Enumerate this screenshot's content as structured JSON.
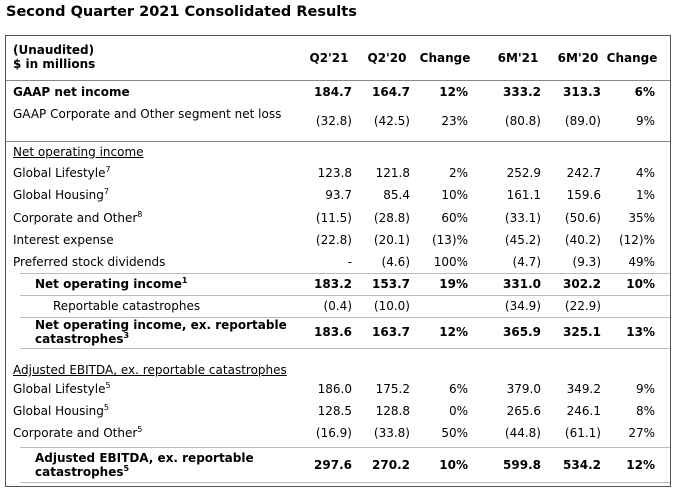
{
  "title": "Second Quarter 2021 Consolidated Results",
  "table": {
    "header": {
      "label": [
        "(Unaudited)",
        "$ in millions"
      ],
      "columns": [
        "Q2'21",
        "Q2'20",
        "Change",
        "6M'21",
        "6M'20",
        "Change"
      ]
    },
    "rows": [
      {
        "label": "GAAP net income",
        "sup": null,
        "values": [
          "184.7",
          "164.7",
          "12%",
          "333.2",
          "313.3",
          "6%"
        ]
      },
      {
        "label": "GAAP Corporate and Other segment net loss",
        "sup": null,
        "values": [
          "(32.8)",
          "(42.5)",
          "23%",
          "(80.8)",
          "(89.0)",
          "9%"
        ]
      },
      {
        "label": "Net operating income",
        "sup": null,
        "values": null
      },
      {
        "label": "Global Lifestyle",
        "sup": "7",
        "values": [
          "123.8",
          "121.8",
          "2%",
          "252.9",
          "242.7",
          "4%"
        ]
      },
      {
        "label": "Global Housing",
        "sup": "7",
        "values": [
          "93.7",
          "85.4",
          "10%",
          "161.1",
          "159.6",
          "1%"
        ]
      },
      {
        "label": "Corporate and Other",
        "sup": "8",
        "values": [
          "(11.5)",
          "(28.8)",
          "60%",
          "(33.1)",
          "(50.6)",
          "35%"
        ]
      },
      {
        "label": "Interest expense",
        "sup": null,
        "values": [
          "(22.8)",
          "(20.1)",
          "(13)%",
          "(45.2)",
          "(40.2)",
          "(12)%"
        ]
      },
      {
        "label": "Preferred stock dividends",
        "sup": null,
        "values": [
          "-",
          "(4.6)",
          "100%",
          "(4.7)",
          "(9.3)",
          "49%"
        ]
      },
      {
        "label": "Net operating income",
        "sup": "1",
        "values": [
          "183.2",
          "153.7",
          "19%",
          "331.0",
          "302.2",
          "10%"
        ]
      },
      {
        "label": "Reportable catastrophes",
        "sup": null,
        "values": [
          "(0.4)",
          "(10.0)",
          null,
          "(34.9)",
          "(22.9)",
          null
        ]
      },
      {
        "label": "Net operating income, ex. reportable catastrophes",
        "sup": "3",
        "values": [
          "183.6",
          "163.7",
          "12%",
          "365.9",
          "325.1",
          "13%"
        ]
      },
      {
        "label": "Adjusted EBITDA, ex. reportable catastrophes",
        "sup": null,
        "values": null
      },
      {
        "label": "Global Lifestyle",
        "sup": "5",
        "values": [
          "186.0",
          "175.2",
          "6%",
          "379.0",
          "349.2",
          "9%"
        ]
      },
      {
        "label": "Global Housing",
        "sup": "5",
        "values": [
          "128.5",
          "128.8",
          "0%",
          "265.6",
          "246.1",
          "8%"
        ]
      },
      {
        "label": "Corporate and Other",
        "sup": "5",
        "values": [
          "(16.9)",
          "(33.8)",
          "50%",
          "(44.8)",
          "(61.1)",
          "27%"
        ]
      },
      {
        "label": "Adjusted EBITDA, ex. reportable catastrophes",
        "sup": "5",
        "values": [
          "297.6",
          "270.2",
          "10%",
          "599.8",
          "534.2",
          "12%"
        ]
      }
    ]
  }
}
